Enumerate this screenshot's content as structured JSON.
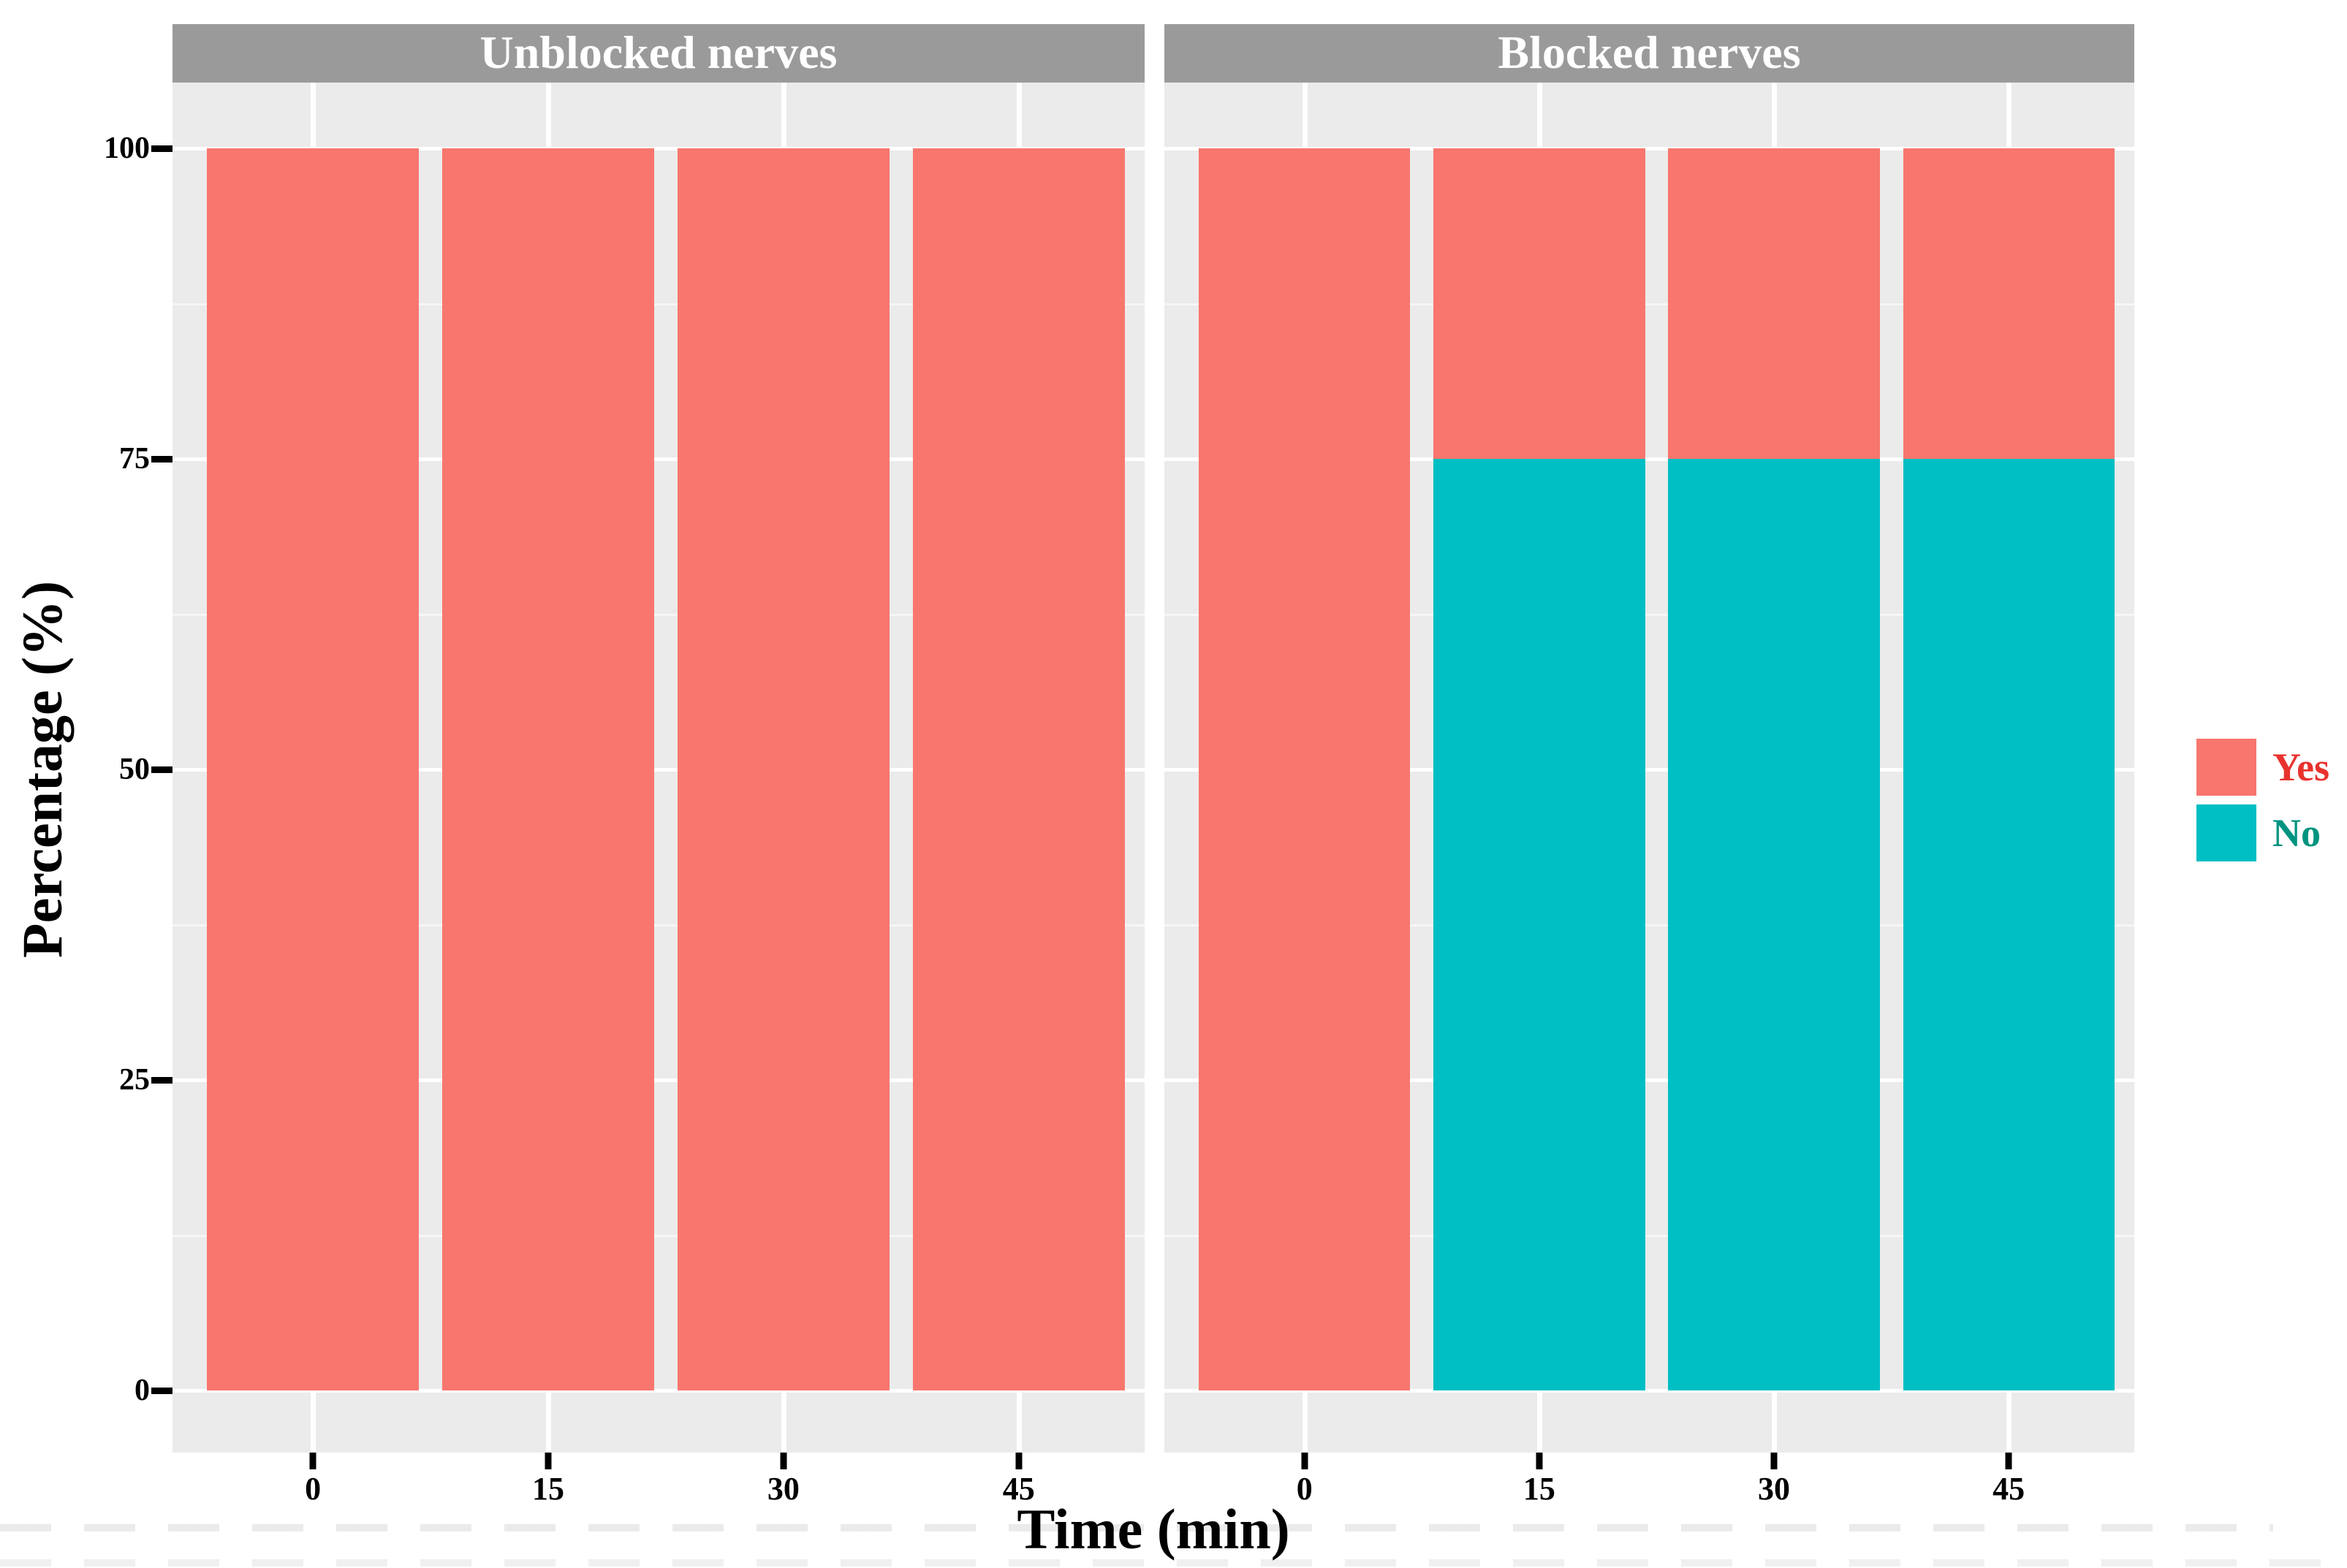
{
  "chart_data": {
    "type": "bar",
    "stacked": true,
    "orientation": "vertical",
    "xlabel": "Time (min)",
    "ylabel": "Percentage (%)",
    "ylim": [
      0,
      100
    ],
    "y_ticks": [
      100,
      75,
      50,
      25,
      0
    ],
    "categories": [
      "0",
      "15",
      "30",
      "45"
    ],
    "stack_order_top_to_bottom": [
      "Yes",
      "No"
    ],
    "facets": [
      {
        "label": "Unblocked nerves",
        "series": [
          {
            "name": "Yes",
            "values": [
              100,
              100,
              100,
              100
            ]
          },
          {
            "name": "No",
            "values": [
              0,
              0,
              0,
              0
            ]
          }
        ]
      },
      {
        "label": "Blocked nerves",
        "series": [
          {
            "name": "Yes",
            "values": [
              100,
              25,
              25,
              25
            ]
          },
          {
            "name": "No",
            "values": [
              0,
              75,
              75,
              75
            ]
          }
        ]
      }
    ],
    "legend": {
      "position": "right",
      "entries": [
        {
          "label": "Yes",
          "swatch_color": "#F8766D",
          "label_color": "#E8322E"
        },
        {
          "label": "No",
          "swatch_color": "#00BFC4",
          "label_color": "#009480"
        }
      ]
    },
    "grid": {
      "major": true,
      "minor": true,
      "legend_position": "right"
    }
  },
  "colors": {
    "bar_yes": "#F8766D",
    "bar_no": "#00BFC4",
    "strip_background": "#9A9A9A",
    "strip_text": "#FFFFFF",
    "panel_background": "#EBEBEB",
    "gridline": "#FFFFFF",
    "axis_text": "#000000",
    "figure_background": "#FFFFFF"
  }
}
